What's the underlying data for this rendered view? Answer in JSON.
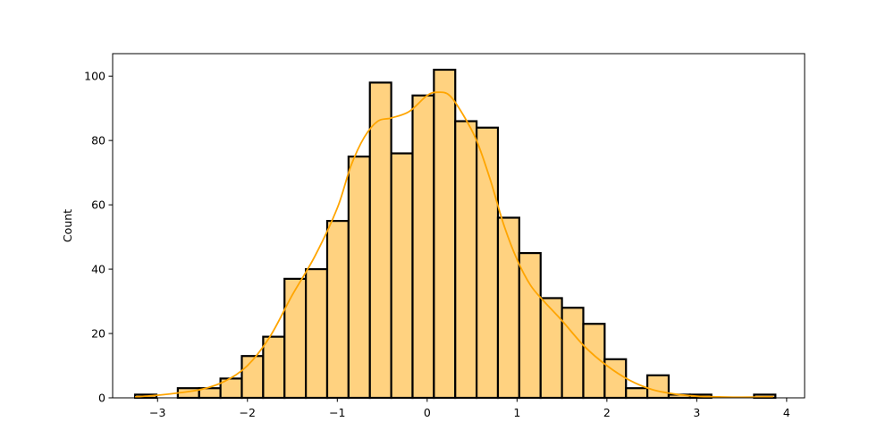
{
  "chart_data": {
    "type": "bar",
    "subtype": "histogram",
    "title": "",
    "xlabel": "",
    "ylabel": "Count",
    "xlim": [
      -3.5,
      4.2
    ],
    "ylim": [
      0,
      107
    ],
    "xticks": [
      -3,
      -2,
      -1,
      0,
      1,
      2,
      3,
      4
    ],
    "xtick_labels": [
      "−3",
      "−2",
      "−1",
      "0",
      "1",
      "2",
      "3",
      "4"
    ],
    "yticks": [
      0,
      20,
      40,
      60,
      80,
      100
    ],
    "ytick_labels": [
      "0",
      "20",
      "40",
      "60",
      "80",
      "100"
    ],
    "bin_start": -3.25,
    "bin_width": 0.2375,
    "counts": [
      1,
      0,
      3,
      3,
      6,
      13,
      19,
      37,
      40,
      55,
      75,
      98,
      76,
      94,
      102,
      86,
      84,
      56,
      45,
      31,
      28,
      23,
      12,
      3,
      7,
      1,
      1,
      0,
      0,
      1
    ],
    "bar_fill": "#ffd280",
    "bar_edge": "#000000",
    "kde": {
      "color": "#ffa500",
      "x": [
        -3.25,
        -3.0,
        -2.75,
        -2.5,
        -2.25,
        -2.0,
        -1.75,
        -1.5,
        -1.25,
        -1.0,
        -0.85,
        -0.7,
        -0.55,
        -0.4,
        -0.2,
        0.0,
        0.12,
        0.25,
        0.4,
        0.55,
        0.7,
        0.85,
        1.0,
        1.15,
        1.3,
        1.5,
        1.75,
        2.0,
        2.25,
        2.5,
        2.75,
        3.0,
        3.25,
        3.5,
        3.85
      ],
      "y": [
        0.3,
        0.8,
        1.6,
        2.7,
        5.2,
        10,
        19,
        32,
        44,
        59,
        72,
        81,
        86,
        87,
        89,
        94,
        95,
        94,
        88,
        80,
        68,
        54,
        43,
        35,
        30,
        24,
        16,
        10,
        5.5,
        2.6,
        1.2,
        0.5,
        0.3,
        0.2,
        0.3
      ]
    },
    "grid": false,
    "legend": "none"
  }
}
